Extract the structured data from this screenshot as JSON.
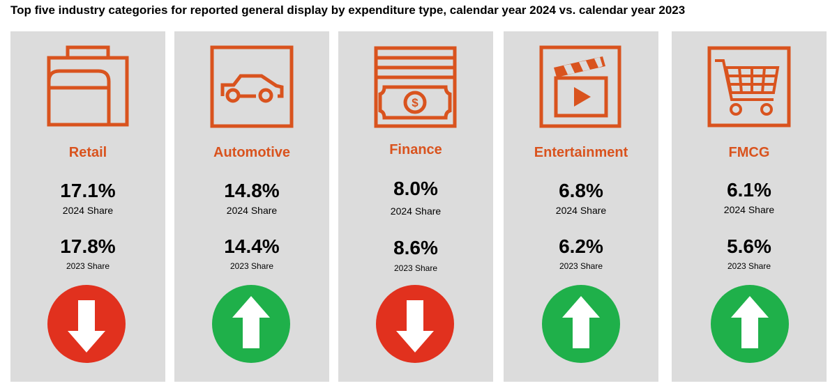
{
  "title": "Top five industry categories for reported general display by expenditure type, calendar year 2024 vs. calendar year 2023",
  "colors": {
    "accent": "#d9531e",
    "down": "#e1311e",
    "up": "#1fb04a",
    "card": "#dcdcdc"
  },
  "labels": {
    "share_2024": "2024 Share",
    "share_2023": "2023 Share"
  },
  "chart_data": {
    "type": "table",
    "title": "Top five industry categories for reported general display by expenditure type, calendar year 2024 vs. calendar year 2023",
    "categories": [
      "Retail",
      "Automotive",
      "Finance",
      "Entertainment",
      "FMCG"
    ],
    "series": [
      {
        "name": "2024 Share",
        "values": [
          "17.1%",
          "14.8%",
          "8.0%",
          "6.8%",
          "6.1%"
        ]
      },
      {
        "name": "2023 Share",
        "values": [
          "17.8%",
          "14.4%",
          "8.6%",
          "6.2%",
          "5.6%"
        ]
      }
    ],
    "trend": [
      "down",
      "up",
      "down",
      "up",
      "up"
    ],
    "icons": [
      "briefcase-icon",
      "car-icon",
      "banknote-icon",
      "clapperboard-icon",
      "shopping-cart-icon"
    ]
  }
}
